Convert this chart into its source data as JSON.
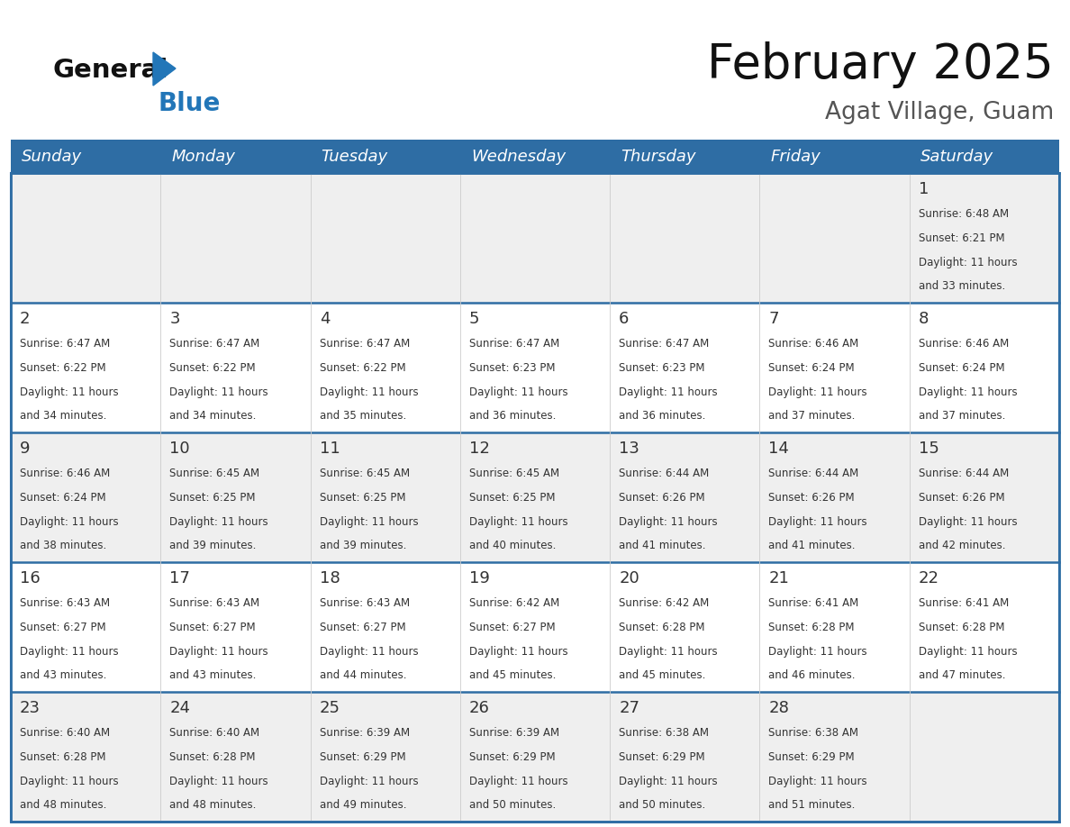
{
  "title": "February 2025",
  "subtitle": "Agat Village, Guam",
  "header_bg_color": "#2E6DA4",
  "header_text_color": "#FFFFFF",
  "day_names": [
    "Sunday",
    "Monday",
    "Tuesday",
    "Wednesday",
    "Thursday",
    "Friday",
    "Saturday"
  ],
  "background_color": "#FFFFFF",
  "cell_bg_alt": "#EFEFEF",
  "grid_color": "#2E6DA4",
  "vert_grid_color": "#CCCCCC",
  "text_color": "#333333",
  "number_color": "#333333",
  "logo_color_general": "#111111",
  "logo_color_blue": "#2276B8",
  "logo_triangle_color": "#2276B8",
  "days": [
    {
      "day": 1,
      "row": 0,
      "col": 6,
      "sunrise": "6:48 AM",
      "sunset": "6:21 PM",
      "daylight_hours": 11,
      "daylight_minutes": 33
    },
    {
      "day": 2,
      "row": 1,
      "col": 0,
      "sunrise": "6:47 AM",
      "sunset": "6:22 PM",
      "daylight_hours": 11,
      "daylight_minutes": 34
    },
    {
      "day": 3,
      "row": 1,
      "col": 1,
      "sunrise": "6:47 AM",
      "sunset": "6:22 PM",
      "daylight_hours": 11,
      "daylight_minutes": 34
    },
    {
      "day": 4,
      "row": 1,
      "col": 2,
      "sunrise": "6:47 AM",
      "sunset": "6:22 PM",
      "daylight_hours": 11,
      "daylight_minutes": 35
    },
    {
      "day": 5,
      "row": 1,
      "col": 3,
      "sunrise": "6:47 AM",
      "sunset": "6:23 PM",
      "daylight_hours": 11,
      "daylight_minutes": 36
    },
    {
      "day": 6,
      "row": 1,
      "col": 4,
      "sunrise": "6:47 AM",
      "sunset": "6:23 PM",
      "daylight_hours": 11,
      "daylight_minutes": 36
    },
    {
      "day": 7,
      "row": 1,
      "col": 5,
      "sunrise": "6:46 AM",
      "sunset": "6:24 PM",
      "daylight_hours": 11,
      "daylight_minutes": 37
    },
    {
      "day": 8,
      "row": 1,
      "col": 6,
      "sunrise": "6:46 AM",
      "sunset": "6:24 PM",
      "daylight_hours": 11,
      "daylight_minutes": 37
    },
    {
      "day": 9,
      "row": 2,
      "col": 0,
      "sunrise": "6:46 AM",
      "sunset": "6:24 PM",
      "daylight_hours": 11,
      "daylight_minutes": 38
    },
    {
      "day": 10,
      "row": 2,
      "col": 1,
      "sunrise": "6:45 AM",
      "sunset": "6:25 PM",
      "daylight_hours": 11,
      "daylight_minutes": 39
    },
    {
      "day": 11,
      "row": 2,
      "col": 2,
      "sunrise": "6:45 AM",
      "sunset": "6:25 PM",
      "daylight_hours": 11,
      "daylight_minutes": 39
    },
    {
      "day": 12,
      "row": 2,
      "col": 3,
      "sunrise": "6:45 AM",
      "sunset": "6:25 PM",
      "daylight_hours": 11,
      "daylight_minutes": 40
    },
    {
      "day": 13,
      "row": 2,
      "col": 4,
      "sunrise": "6:44 AM",
      "sunset": "6:26 PM",
      "daylight_hours": 11,
      "daylight_minutes": 41
    },
    {
      "day": 14,
      "row": 2,
      "col": 5,
      "sunrise": "6:44 AM",
      "sunset": "6:26 PM",
      "daylight_hours": 11,
      "daylight_minutes": 41
    },
    {
      "day": 15,
      "row": 2,
      "col": 6,
      "sunrise": "6:44 AM",
      "sunset": "6:26 PM",
      "daylight_hours": 11,
      "daylight_minutes": 42
    },
    {
      "day": 16,
      "row": 3,
      "col": 0,
      "sunrise": "6:43 AM",
      "sunset": "6:27 PM",
      "daylight_hours": 11,
      "daylight_minutes": 43
    },
    {
      "day": 17,
      "row": 3,
      "col": 1,
      "sunrise": "6:43 AM",
      "sunset": "6:27 PM",
      "daylight_hours": 11,
      "daylight_minutes": 43
    },
    {
      "day": 18,
      "row": 3,
      "col": 2,
      "sunrise": "6:43 AM",
      "sunset": "6:27 PM",
      "daylight_hours": 11,
      "daylight_minutes": 44
    },
    {
      "day": 19,
      "row": 3,
      "col": 3,
      "sunrise": "6:42 AM",
      "sunset": "6:27 PM",
      "daylight_hours": 11,
      "daylight_minutes": 45
    },
    {
      "day": 20,
      "row": 3,
      "col": 4,
      "sunrise": "6:42 AM",
      "sunset": "6:28 PM",
      "daylight_hours": 11,
      "daylight_minutes": 45
    },
    {
      "day": 21,
      "row": 3,
      "col": 5,
      "sunrise": "6:41 AM",
      "sunset": "6:28 PM",
      "daylight_hours": 11,
      "daylight_minutes": 46
    },
    {
      "day": 22,
      "row": 3,
      "col": 6,
      "sunrise": "6:41 AM",
      "sunset": "6:28 PM",
      "daylight_hours": 11,
      "daylight_minutes": 47
    },
    {
      "day": 23,
      "row": 4,
      "col": 0,
      "sunrise": "6:40 AM",
      "sunset": "6:28 PM",
      "daylight_hours": 11,
      "daylight_minutes": 48
    },
    {
      "day": 24,
      "row": 4,
      "col": 1,
      "sunrise": "6:40 AM",
      "sunset": "6:28 PM",
      "daylight_hours": 11,
      "daylight_minutes": 48
    },
    {
      "day": 25,
      "row": 4,
      "col": 2,
      "sunrise": "6:39 AM",
      "sunset": "6:29 PM",
      "daylight_hours": 11,
      "daylight_minutes": 49
    },
    {
      "day": 26,
      "row": 4,
      "col": 3,
      "sunrise": "6:39 AM",
      "sunset": "6:29 PM",
      "daylight_hours": 11,
      "daylight_minutes": 50
    },
    {
      "day": 27,
      "row": 4,
      "col": 4,
      "sunrise": "6:38 AM",
      "sunset": "6:29 PM",
      "daylight_hours": 11,
      "daylight_minutes": 50
    },
    {
      "day": 28,
      "row": 4,
      "col": 5,
      "sunrise": "6:38 AM",
      "sunset": "6:29 PM",
      "daylight_hours": 11,
      "daylight_minutes": 51
    }
  ],
  "num_rows": 5,
  "num_cols": 7
}
